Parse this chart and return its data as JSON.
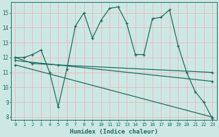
{
  "xlabel": "Humidex (Indice chaleur)",
  "ylabel": "",
  "bg_color": "#cde8e4",
  "line_color": "#1a6b5e",
  "grid_color": "#b0d8d2",
  "xlim": [
    -0.5,
    23.5
  ],
  "ylim": [
    7.8,
    15.7
  ],
  "yticks": [
    8,
    9,
    10,
    11,
    12,
    13,
    14,
    15
  ],
  "xticks": [
    0,
    1,
    2,
    3,
    4,
    5,
    6,
    7,
    8,
    9,
    10,
    11,
    12,
    13,
    14,
    15,
    16,
    17,
    18,
    19,
    20,
    21,
    22,
    23
  ],
  "line1_x": [
    0,
    1,
    2,
    3,
    4,
    5,
    6,
    7,
    8,
    9,
    10,
    11,
    12,
    13,
    14,
    15,
    16,
    17,
    18,
    19,
    20,
    21,
    22,
    23
  ],
  "line1_y": [
    12.0,
    12.0,
    12.2,
    12.5,
    11.0,
    8.7,
    11.2,
    14.1,
    15.0,
    13.3,
    14.5,
    15.3,
    15.4,
    14.3,
    12.2,
    12.2,
    14.6,
    14.7,
    15.2,
    12.8,
    11.0,
    9.7,
    9.0,
    7.9
  ],
  "line2_x": [
    0,
    2,
    5,
    23
  ],
  "line2_y": [
    12.0,
    11.6,
    11.5,
    11.0
  ],
  "line3_x": [
    0,
    23
  ],
  "line3_y": [
    11.8,
    10.4
  ],
  "line4_x": [
    0,
    23
  ],
  "line4_y": [
    11.5,
    8.0
  ]
}
